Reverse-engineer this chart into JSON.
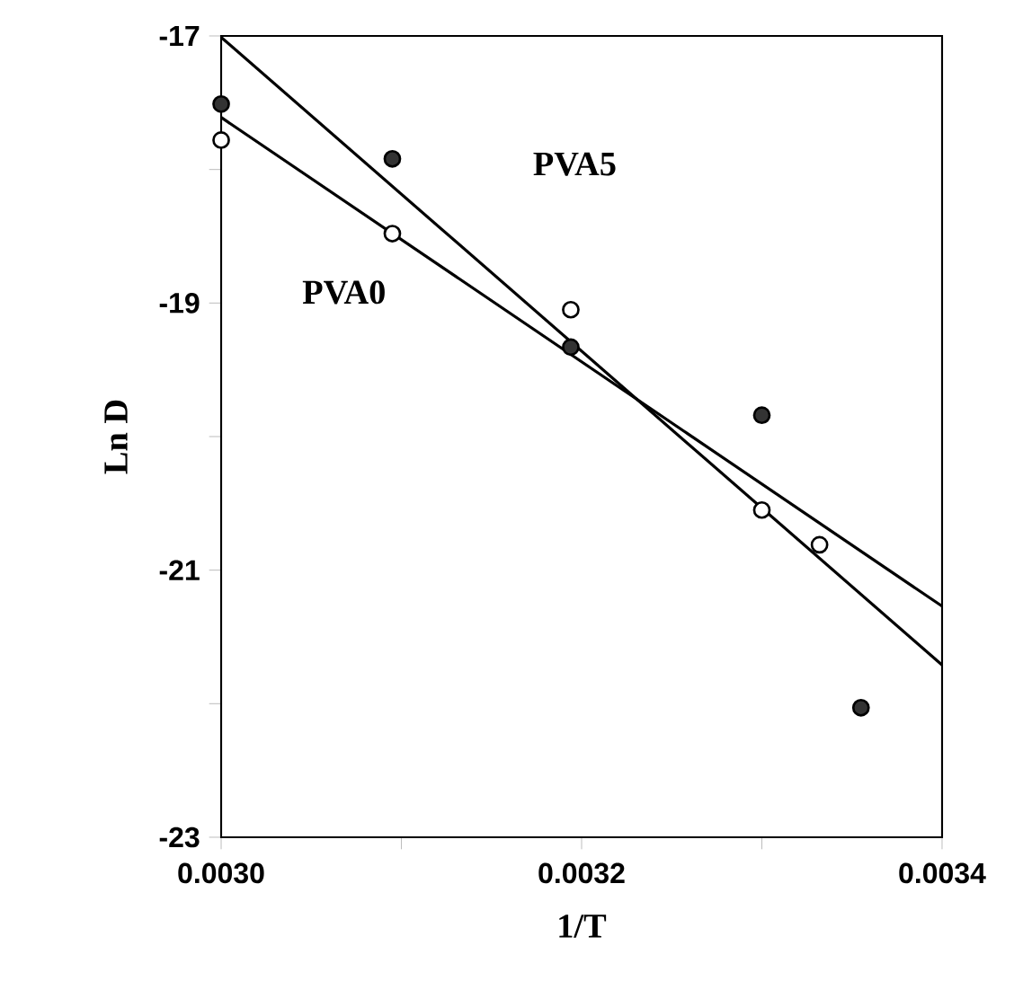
{
  "chart_data": {
    "type": "scatter",
    "xlabel": "1/T",
    "ylabel": "Ln D",
    "xlim": [
      0.003,
      0.0034
    ],
    "ylim": [
      -23,
      -17
    ],
    "xticks": [
      {
        "value": 0.003,
        "label": "0.0030"
      },
      {
        "value": 0.0031,
        "label": null
      },
      {
        "value": 0.0032,
        "label": "0.0032"
      },
      {
        "value": 0.0033,
        "label": null
      },
      {
        "value": 0.0034,
        "label": "0.0034"
      }
    ],
    "yticks": [
      -23,
      {
        "value": -22,
        "label": null
      },
      -21,
      {
        "value": -20,
        "label": null
      },
      -19,
      {
        "value": -18,
        "label": null
      },
      -17
    ],
    "marker": "circle",
    "grid": false,
    "series": [
      {
        "color": "#333333",
        "x": [
          0.003,
          0.003095,
          0.003194,
          0.0033,
          0.003355
        ],
        "values": [
          -17.51,
          -17.92,
          -19.33,
          -19.84,
          -22.03
        ]
      },
      {
        "color": "#ffffff",
        "x": [
          0.003,
          0.003095,
          0.003194,
          0.0033,
          0.003332
        ],
        "values": [
          -17.78,
          -18.48,
          -19.05,
          -20.55,
          -20.81
        ]
      },
      {
        "type": "line",
        "name": "PVA5",
        "color": "#000000",
        "marker": "none",
        "x": [
          0.003,
          0.0034
        ],
        "values": [
          -17.01,
          -21.71
        ]
      },
      {
        "type": "line",
        "name": "PVA0",
        "color": "#000000",
        "marker": "none",
        "x": [
          0.003,
          0.0034
        ],
        "values": [
          -17.61,
          -21.27
        ]
      }
    ]
  }
}
